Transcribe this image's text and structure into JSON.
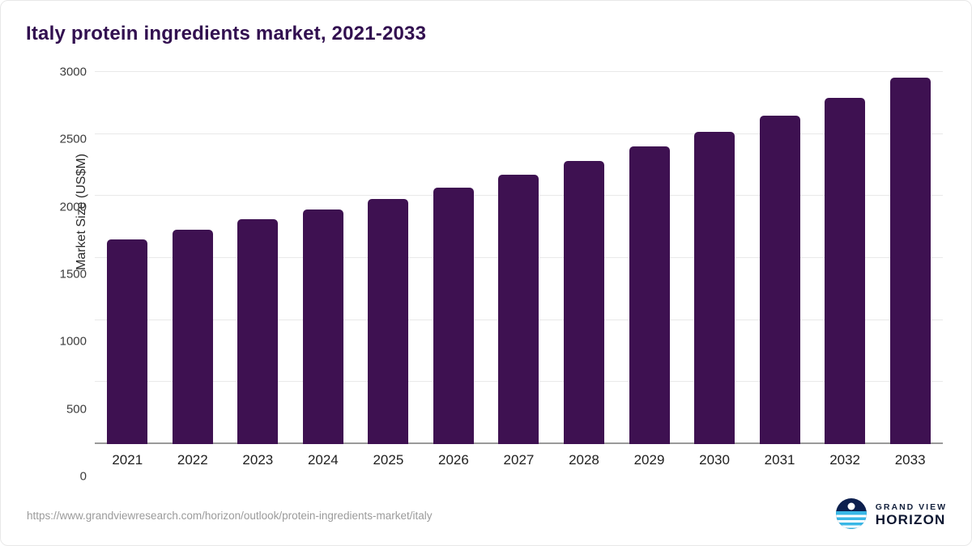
{
  "title": "Italy protein ingredients market, 2021-2033",
  "source_url": "https://www.grandviewresearch.com/horizon/outlook/protein-ingredients-market/italy",
  "logo": {
    "top": "GRAND VIEW",
    "bottom": "HORIZON"
  },
  "colors": {
    "bar": "#3e1151",
    "title": "#321050",
    "gridline": "#e9e9e9",
    "baseline": "#9a9a9a",
    "logo_dark": "#0c1f4e",
    "logo_light": "#39b7e6"
  },
  "chart_data": {
    "type": "bar",
    "title": "Italy protein ingredients market, 2021-2033",
    "categories": [
      "2021",
      "2022",
      "2023",
      "2024",
      "2025",
      "2026",
      "2027",
      "2028",
      "2029",
      "2030",
      "2031",
      "2032",
      "2033"
    ],
    "values": [
      1650,
      1730,
      1810,
      1890,
      1975,
      2070,
      2170,
      2280,
      2400,
      2520,
      2650,
      2790,
      2955
    ],
    "xlabel": "",
    "ylabel": "Market Size (US$M)",
    "ylim": [
      0,
      3000
    ],
    "yticks": [
      0,
      500,
      1000,
      1500,
      2000,
      2500,
      3000
    ],
    "grid": true,
    "legend": false,
    "bar_color": "#3e1151"
  }
}
